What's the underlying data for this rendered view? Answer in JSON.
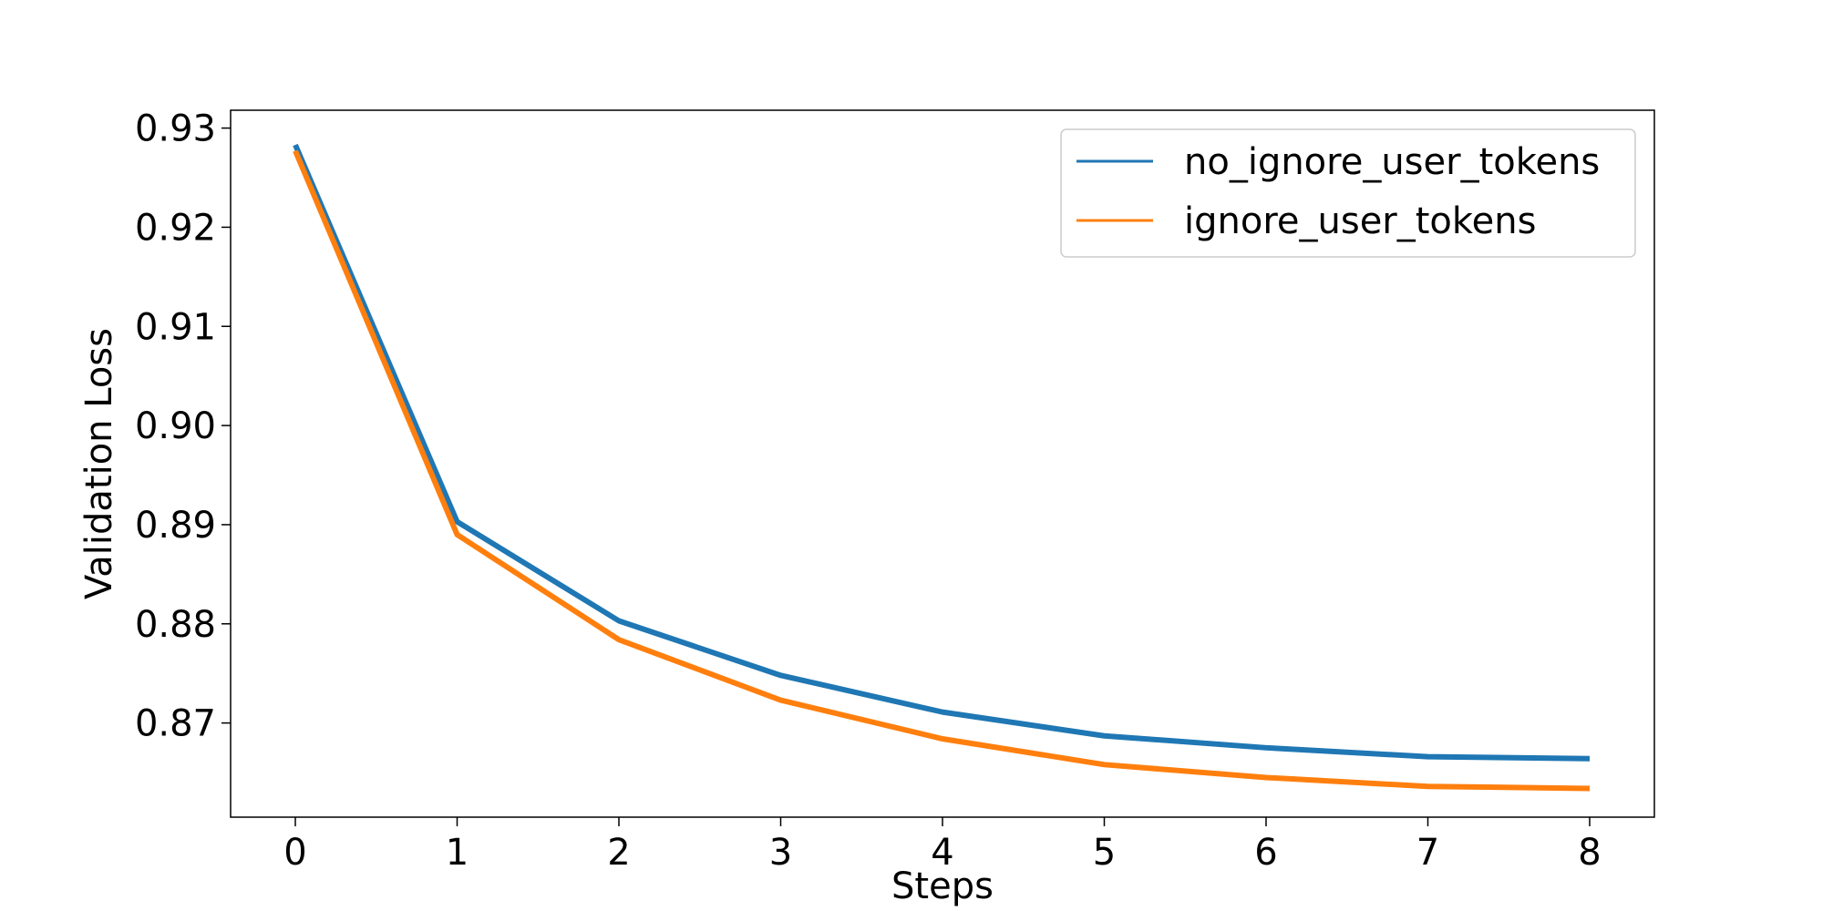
{
  "chart_data": {
    "type": "line",
    "title": "",
    "xlabel": "Steps",
    "ylabel": "Validation Loss",
    "x": [
      0,
      1,
      2,
      3,
      4,
      5,
      6,
      7,
      8
    ],
    "xlim": [
      -0.4,
      8.4
    ],
    "ylim": [
      0.8605,
      0.9318
    ],
    "xticks": [
      0,
      1,
      2,
      3,
      4,
      5,
      6,
      7,
      8
    ],
    "xtick_labels": [
      "0",
      "1",
      "2",
      "3",
      "4",
      "5",
      "6",
      "7",
      "8"
    ],
    "yticks": [
      0.87,
      0.88,
      0.89,
      0.9,
      0.91,
      0.92,
      0.93
    ],
    "ytick_labels": [
      "0.87",
      "0.88",
      "0.89",
      "0.90",
      "0.91",
      "0.92",
      "0.93"
    ],
    "grid": false,
    "legend_position": "top-right",
    "series": [
      {
        "name": "no_ignore_user_tokens",
        "color": "#1f77b4",
        "values": [
          0.9283,
          0.8903,
          0.8803,
          0.8748,
          0.8711,
          0.8687,
          0.8675,
          0.8666,
          0.8664
        ]
      },
      {
        "name": "ignore_user_tokens",
        "color": "#ff7f0e",
        "values": [
          0.9277,
          0.889,
          0.8784,
          0.8723,
          0.8684,
          0.8658,
          0.8645,
          0.8636,
          0.8634
        ]
      }
    ]
  }
}
